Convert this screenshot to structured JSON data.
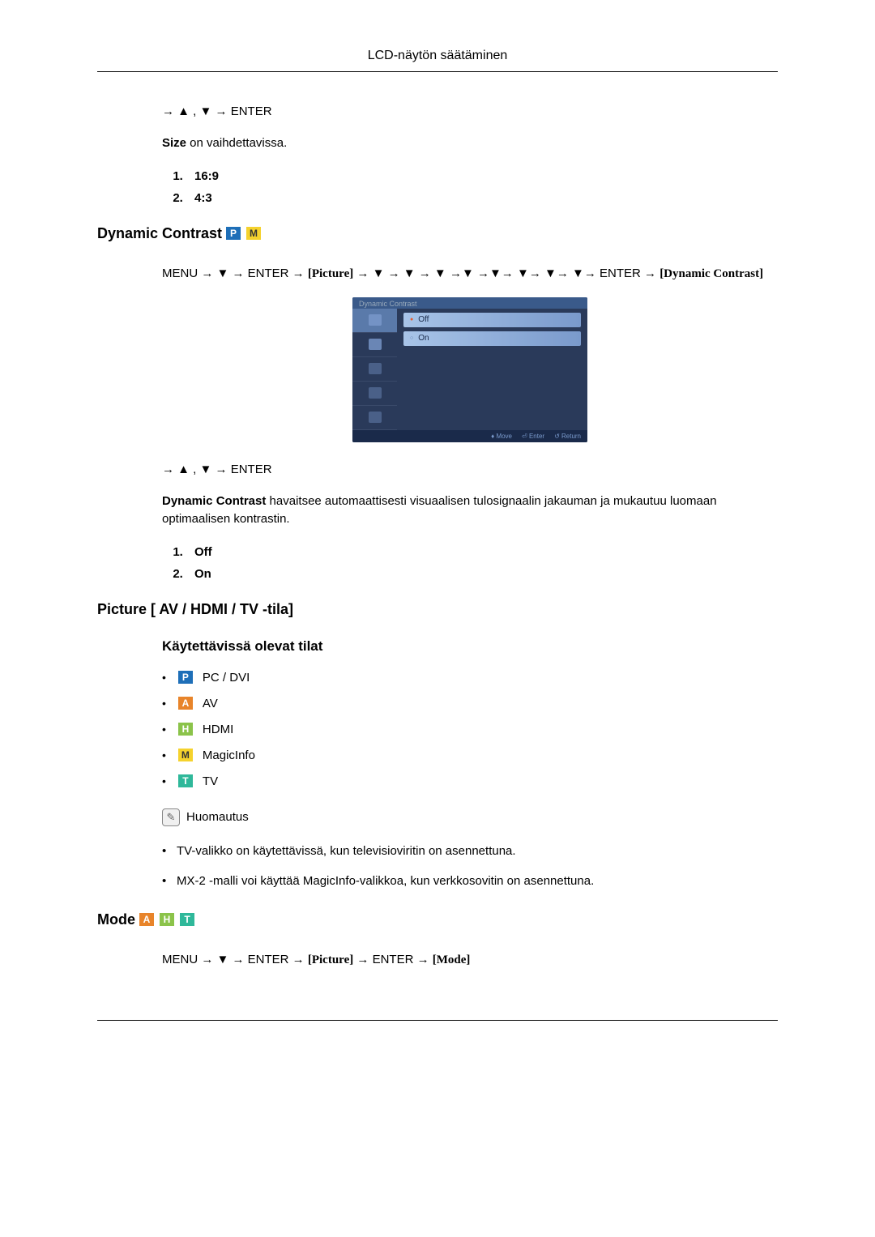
{
  "header": {
    "title": "LCD-näytön säätäminen"
  },
  "section1": {
    "nav": "→ ▲ , ▼ → ENTER",
    "sizeText": "Size",
    "sizeSuffix": " on vaihdettavissa.",
    "items": [
      "16:9",
      "4:3"
    ]
  },
  "dynamicContrast": {
    "heading": "Dynamic Contrast",
    "badges": [
      "P",
      "M"
    ],
    "navPrefix": "MENU → ▼ → ENTER → ",
    "navBracket1": "[Picture]",
    "navMid": " → ▼ → ▼ → ▼ →▼ →▼→ ▼→ ▼→ ▼→ ENTER → ",
    "navBracket2": "[Dynamic Contrast]",
    "osd": {
      "title": "Dynamic Contrast",
      "options": [
        "Off",
        "On"
      ],
      "selectedIndex": 0,
      "footer": [
        "♦ Move",
        "⏎ Enter",
        "↺ Return"
      ]
    },
    "nav2": "→ ▲ , ▼ → ENTER",
    "descBold": "Dynamic Contrast",
    "descText": " havaitsee automaattisesti visuaalisen tulosignaalin jakauman ja mukautuu luomaan optimaalisen kontrastin.",
    "items": [
      "Off",
      "On"
    ]
  },
  "pictureMode": {
    "heading": "Picture [ AV / HDMI / TV -tila]",
    "subheading": "Käytettävissä olevat tilat",
    "modes": [
      {
        "badge": "P",
        "badgeClass": "badge-p",
        "label": "PC / DVI"
      },
      {
        "badge": "A",
        "badgeClass": "badge-a",
        "label": "AV"
      },
      {
        "badge": "H",
        "badgeClass": "badge-h",
        "label": "HDMI"
      },
      {
        "badge": "M",
        "badgeClass": "badge-m",
        "label": "MagicInfo"
      },
      {
        "badge": "T",
        "badgeClass": "badge-t",
        "label": "TV"
      }
    ],
    "noteLabel": "Huomautus",
    "notes": [
      "TV-valikko on käytettävissä, kun televisioviritin on asennettuna.",
      "MX-2 -malli voi käyttää MagicInfo-valikkoa, kun verkkosovitin on asennettuna."
    ]
  },
  "mode": {
    "heading": "Mode",
    "badges": [
      {
        "badge": "A",
        "badgeClass": "badge-a"
      },
      {
        "badge": "H",
        "badgeClass": "badge-h"
      },
      {
        "badge": "T",
        "badgeClass": "badge-t"
      }
    ],
    "navPrefix": "MENU → ▼ → ENTER → ",
    "navBracket1": "[Picture]",
    "navMid": " → ENTER → ",
    "navBracket2": "[Mode]"
  }
}
